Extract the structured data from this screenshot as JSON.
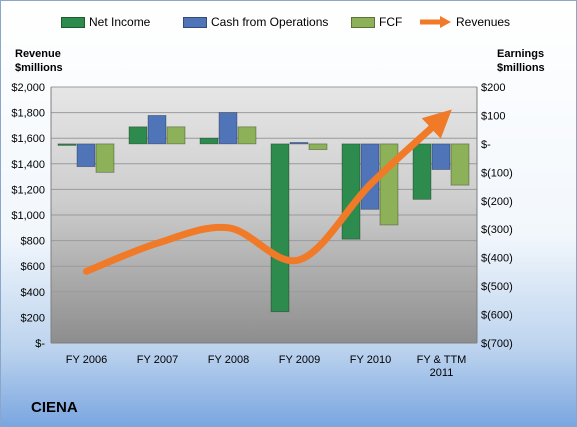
{
  "company": "CIENA",
  "chart_data": {
    "type": "bar",
    "categories": [
      "FY 2006",
      "FY 2007",
      "FY 2008",
      "FY 2009",
      "FY 2010",
      "FY & TTM 2011"
    ],
    "category_lines": [
      [
        "FY 2006"
      ],
      [
        "FY 2007"
      ],
      [
        "FY 2008"
      ],
      [
        "FY 2009"
      ],
      [
        "FY 2010"
      ],
      [
        "FY & TTM",
        "2011"
      ]
    ],
    "left_axis": {
      "title_lines": [
        "Revenue",
        "$millions"
      ],
      "range": [
        0,
        2000
      ],
      "ticks": [
        0,
        200,
        400,
        600,
        800,
        1000,
        1200,
        1400,
        1600,
        1800,
        2000
      ],
      "tick_labels": [
        "$-",
        "$200",
        "$400",
        "$600",
        "$800",
        "$1,000",
        "$1,200",
        "$1,400",
        "$1,600",
        "$1,800",
        "$2,000"
      ]
    },
    "right_axis": {
      "title_lines": [
        "Earnings",
        "$millions"
      ],
      "range": [
        -700,
        200
      ],
      "ticks": [
        -700,
        -600,
        -500,
        -400,
        -300,
        -200,
        -100,
        0,
        100,
        200
      ],
      "tick_labels": [
        "$(700)",
        "$(600)",
        "$(500)",
        "$(400)",
        "$(300)",
        "$(200)",
        "$(100)",
        "$-",
        "$100",
        "$200"
      ]
    },
    "series": [
      {
        "name": "Net Income",
        "axis": "right",
        "chart": "bar",
        "color": "#2e8b4e",
        "values": [
          0,
          60,
          20,
          -590,
          -335,
          -195
        ]
      },
      {
        "name": "Cash from Operations",
        "axis": "right",
        "chart": "bar",
        "color": "#4f74b8",
        "values": [
          -80,
          100,
          110,
          5,
          -230,
          -90
        ]
      },
      {
        "name": "FCF",
        "axis": "right",
        "chart": "bar",
        "color": "#8db158",
        "values": [
          -100,
          60,
          60,
          -20,
          -285,
          -145
        ]
      },
      {
        "name": "Revenues",
        "axis": "left",
        "chart": "line",
        "color": "#f07a28",
        "values": [
          560,
          780,
          900,
          650,
          1240,
          1750
        ]
      }
    ],
    "legend": "top",
    "grid": true
  }
}
